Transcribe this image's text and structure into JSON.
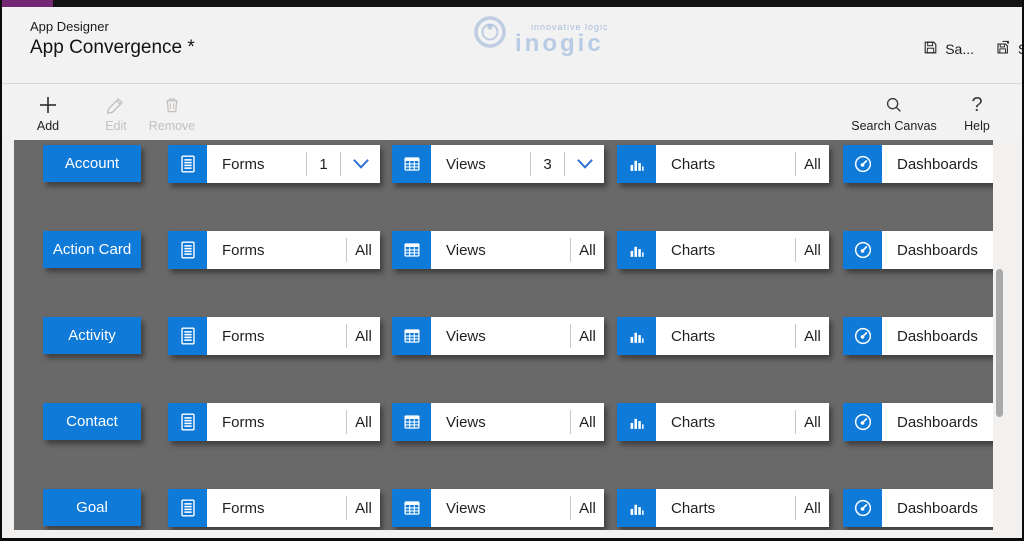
{
  "header": {
    "app_label": "App Designer",
    "title": "App Convergence *",
    "save_label": "Sa...",
    "save_as_partial": "S",
    "watermark_brand": "inogic",
    "watermark_tagline": "innovative logic"
  },
  "toolbar": {
    "add_label": "Add",
    "edit_label": "Edit",
    "remove_label": "Remove",
    "search_label": "Search Canvas",
    "help_label": "Help"
  },
  "canvas": {
    "rows": [
      {
        "entity": "Account",
        "tiles": [
          {
            "type": "forms",
            "label": "Forms",
            "value": "1",
            "dropdown": true
          },
          {
            "type": "views",
            "label": "Views",
            "value": "3",
            "dropdown": true
          },
          {
            "type": "charts",
            "label": "Charts",
            "value": "All",
            "dropdown": false
          },
          {
            "type": "dashboards",
            "label": "Dashboards",
            "value": "",
            "dropdown": false
          }
        ]
      },
      {
        "entity": "Action Card",
        "tiles": [
          {
            "type": "forms",
            "label": "Forms",
            "value": "All",
            "dropdown": false
          },
          {
            "type": "views",
            "label": "Views",
            "value": "All",
            "dropdown": false
          },
          {
            "type": "charts",
            "label": "Charts",
            "value": "All",
            "dropdown": false
          },
          {
            "type": "dashboards",
            "label": "Dashboards",
            "value": "",
            "dropdown": false
          }
        ]
      },
      {
        "entity": "Activity",
        "tiles": [
          {
            "type": "forms",
            "label": "Forms",
            "value": "All",
            "dropdown": false
          },
          {
            "type": "views",
            "label": "Views",
            "value": "All",
            "dropdown": false
          },
          {
            "type": "charts",
            "label": "Charts",
            "value": "All",
            "dropdown": false
          },
          {
            "type": "dashboards",
            "label": "Dashboards",
            "value": "",
            "dropdown": false
          }
        ]
      },
      {
        "entity": "Contact",
        "tiles": [
          {
            "type": "forms",
            "label": "Forms",
            "value": "All",
            "dropdown": false
          },
          {
            "type": "views",
            "label": "Views",
            "value": "All",
            "dropdown": false
          },
          {
            "type": "charts",
            "label": "Charts",
            "value": "All",
            "dropdown": false
          },
          {
            "type": "dashboards",
            "label": "Dashboards",
            "value": "",
            "dropdown": false
          }
        ]
      },
      {
        "entity": "Goal",
        "tiles": [
          {
            "type": "forms",
            "label": "Forms",
            "value": "All",
            "dropdown": false
          },
          {
            "type": "views",
            "label": "Views",
            "value": "All",
            "dropdown": false
          },
          {
            "type": "charts",
            "label": "Charts",
            "value": "All",
            "dropdown": false
          },
          {
            "type": "dashboards",
            "label": "Dashboards",
            "value": "",
            "dropdown": false
          }
        ]
      }
    ]
  },
  "colors": {
    "accent_blue": "#0f7ad8",
    "chevron_blue": "#2f6fd6",
    "canvas_gray": "#696969",
    "topbar_purple": "#722872"
  }
}
